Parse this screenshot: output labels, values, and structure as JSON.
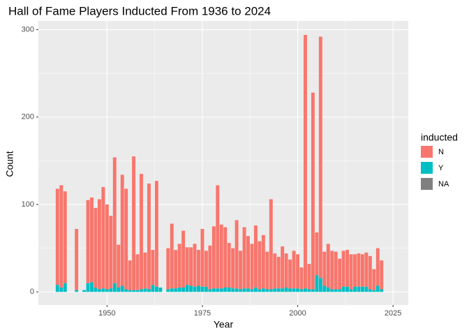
{
  "chart_data": {
    "type": "stacked_bar",
    "title": "Hall of Fame Players Inducted From 1936 to 2024",
    "x_label": "Year",
    "y_label": "Count",
    "legend_title": "inducted",
    "x": [
      1937,
      1938,
      1939,
      1942,
      1944,
      1945,
      1946,
      1947,
      1948,
      1949,
      1950,
      1951,
      1952,
      1953,
      1954,
      1955,
      1956,
      1957,
      1958,
      1959,
      1960,
      1961,
      1962,
      1963,
      1964,
      1966,
      1967,
      1968,
      1969,
      1970,
      1971,
      1972,
      1973,
      1974,
      1975,
      1976,
      1977,
      1978,
      1979,
      1980,
      1981,
      1982,
      1983,
      1984,
      1985,
      1986,
      1987,
      1988,
      1989,
      1990,
      1991,
      1992,
      1993,
      1994,
      1995,
      1996,
      1997,
      1998,
      1999,
      2000,
      2001,
      2002,
      2003,
      2004,
      2005,
      2006,
      2007,
      2008,
      2009,
      2010,
      2011,
      2012,
      2013,
      2014,
      2015,
      2016,
      2017,
      2018,
      2019,
      2020,
      2021,
      2022
    ],
    "series": [
      {
        "name": "Y",
        "color": "#00BFC4",
        "values": [
          8,
          5,
          10,
          2,
          2,
          10,
          11,
          5,
          3,
          4,
          3,
          4,
          10,
          5,
          7,
          3,
          2,
          2,
          2,
          3,
          4,
          3,
          8,
          6,
          5,
          3,
          4,
          4,
          5,
          5,
          8,
          7,
          6,
          7,
          6,
          6,
          3,
          4,
          4,
          4,
          5,
          5,
          4,
          4,
          3,
          4,
          4,
          3,
          5,
          3,
          4,
          3,
          3,
          4,
          4,
          4,
          5,
          4,
          4,
          4,
          3,
          4,
          3,
          3,
          19,
          16,
          7,
          5,
          3,
          3,
          3,
          6,
          6,
          3,
          6,
          6,
          6,
          6,
          3,
          2,
          7,
          3
        ]
      },
      {
        "name": "N",
        "color": "#F8766D",
        "values": [
          110,
          117,
          105,
          70,
          0,
          95,
          97,
          91,
          103,
          116,
          97,
          83,
          144,
          49,
          127,
          115,
          34,
          153,
          41,
          132,
          41,
          121,
          40,
          121,
          0,
          47,
          74,
          44,
          50,
          65,
          43,
          44,
          49,
          41,
          66,
          41,
          50,
          71,
          118,
          73,
          69,
          51,
          46,
          78,
          44,
          70,
          60,
          52,
          71,
          55,
          61,
          43,
          103,
          40,
          36,
          48,
          39,
          33,
          43,
          39,
          25,
          290,
          29,
          225,
          49,
          276,
          39,
          50,
          44,
          43,
          35,
          41,
          42,
          40,
          37,
          38,
          37,
          39,
          38,
          24,
          43,
          33
        ]
      },
      {
        "name": "NA",
        "color": "#7F7F7F",
        "values": [
          0,
          0,
          0,
          0,
          0,
          0,
          0,
          0,
          0,
          0,
          0,
          0,
          0,
          0,
          0,
          0,
          0,
          0,
          0,
          0,
          0,
          0,
          0,
          0,
          0,
          0,
          0,
          0,
          0,
          0,
          0,
          0,
          0,
          0,
          0,
          0,
          0,
          0,
          0,
          0,
          0,
          0,
          0,
          0,
          0,
          0,
          0,
          0,
          0,
          0,
          0,
          0,
          0,
          0,
          0,
          0,
          0,
          0,
          0,
          0,
          0,
          0,
          0,
          0,
          0,
          0,
          0,
          0,
          0,
          0,
          0,
          0,
          0,
          0,
          0,
          0,
          0,
          0,
          0,
          0,
          0,
          0
        ]
      }
    ],
    "legend_order": [
      1,
      0,
      2
    ],
    "xlim": [
      1932,
      2029
    ],
    "ylim": [
      -15,
      310
    ],
    "xticks": [
      1950,
      1975,
      2000,
      2025
    ],
    "yticks": [
      0,
      100,
      200,
      300
    ],
    "grid": true
  }
}
